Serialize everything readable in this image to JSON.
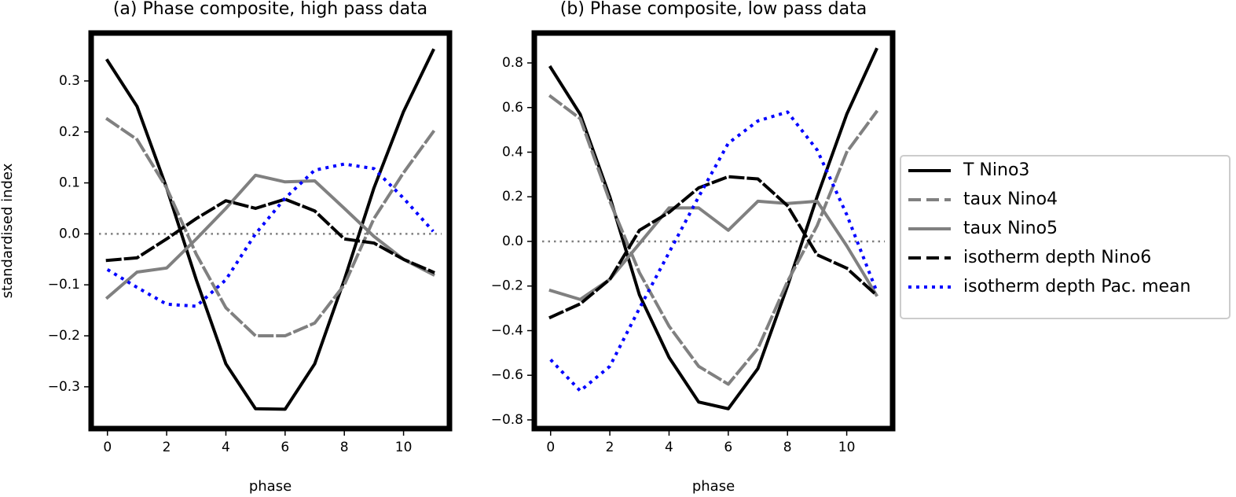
{
  "chart_data": [
    {
      "type": "line",
      "title": "(a) Phase composite, high pass data",
      "xlabel": "phase",
      "ylabel": "standardised index",
      "x": [
        0,
        1,
        2,
        3,
        4,
        5,
        6,
        7,
        8,
        9,
        10,
        11
      ],
      "xlim": [
        -0.55,
        11.55
      ],
      "xticks": [
        0,
        2,
        4,
        6,
        8,
        10
      ],
      "ylim": [
        -0.382,
        0.394
      ],
      "yticks": [
        {
          "value": -0.3,
          "label": "−0.3"
        },
        {
          "value": -0.2,
          "label": "−0.2"
        },
        {
          "value": -0.1,
          "label": "−0.1"
        },
        {
          "value": 0,
          "label": "0.0"
        },
        0.1,
        0.2,
        0.3
      ],
      "hline": 0,
      "series": [
        {
          "name": "T Nino3",
          "color": "#000000",
          "dash": "solid",
          "values": [
            0.34,
            0.25,
            0.09,
            -0.09,
            -0.255,
            -0.343,
            -0.344,
            -0.255,
            -0.09,
            0.09,
            0.24,
            0.36
          ]
        },
        {
          "name": "taux Nino4",
          "color": "#808080",
          "dash": "dashed",
          "values": [
            0.225,
            0.185,
            0.09,
            -0.04,
            -0.145,
            -0.2,
            -0.2,
            -0.175,
            -0.1,
            0.03,
            0.12,
            0.2
          ]
        },
        {
          "name": "taux Nino5",
          "color": "#808080",
          "dash": "solid",
          "values": [
            -0.125,
            -0.075,
            -0.067,
            -0.01,
            0.05,
            0.115,
            0.102,
            0.104,
            0.05,
            -0.005,
            -0.05,
            -0.08
          ]
        },
        {
          "name": "isotherm depth Nino6",
          "color": "#000000",
          "dash": "dashed",
          "values": [
            -0.052,
            -0.047,
            -0.01,
            0.03,
            0.065,
            0.05,
            0.068,
            0.045,
            -0.01,
            -0.018,
            -0.05,
            -0.075
          ]
        },
        {
          "name": "isotherm depth Pac. mean",
          "color": "#0000ff",
          "dash": "dotted",
          "values": [
            -0.07,
            -0.105,
            -0.138,
            -0.142,
            -0.09,
            0.0,
            0.07,
            0.125,
            0.137,
            0.128,
            0.07,
            0.005
          ]
        }
      ],
      "legend": "outside right"
    },
    {
      "type": "line",
      "title": "(b) Phase composite, low pass data",
      "xlabel": "phase",
      "x": [
        0,
        1,
        2,
        3,
        4,
        5,
        6,
        7,
        8,
        9,
        10,
        11
      ],
      "xlim": [
        -0.55,
        11.55
      ],
      "xticks": [
        0,
        2,
        4,
        6,
        8,
        10
      ],
      "ylim": [
        -0.839,
        0.934
      ],
      "yticks": [
        {
          "value": -0.8,
          "label": "−0.8"
        },
        {
          "value": -0.6,
          "label": "−0.6"
        },
        {
          "value": -0.4,
          "label": "−0.4"
        },
        {
          "value": -0.2,
          "label": "−0.2"
        },
        {
          "value": 0,
          "label": "0.0"
        },
        0.2,
        0.4,
        0.6,
        0.8
      ],
      "hline": 0,
      "series": [
        {
          "color": "#000000",
          "dash": "solid",
          "values": [
            0.78,
            0.57,
            0.2,
            -0.24,
            -0.52,
            -0.72,
            -0.75,
            -0.57,
            -0.2,
            0.2,
            0.57,
            0.86
          ]
        },
        {
          "color": "#808080",
          "dash": "dashed",
          "values": [
            0.65,
            0.55,
            0.18,
            -0.14,
            -0.38,
            -0.56,
            -0.64,
            -0.48,
            -0.18,
            0.07,
            0.4,
            0.58
          ]
        },
        {
          "color": "#808080",
          "dash": "solid",
          "values": [
            -0.22,
            -0.26,
            -0.17,
            -0.01,
            0.15,
            0.15,
            0.05,
            0.18,
            0.17,
            0.18,
            -0.02,
            -0.24
          ]
        },
        {
          "color": "#000000",
          "dash": "dashed",
          "values": [
            -0.34,
            -0.28,
            -0.17,
            0.05,
            0.13,
            0.24,
            0.29,
            0.28,
            0.16,
            -0.06,
            -0.12,
            -0.24
          ]
        },
        {
          "color": "#0000ff",
          "dash": "dotted",
          "values": [
            -0.53,
            -0.67,
            -0.56,
            -0.3,
            -0.05,
            0.2,
            0.44,
            0.54,
            0.58,
            0.41,
            0.12,
            -0.22
          ]
        }
      ]
    }
  ]
}
